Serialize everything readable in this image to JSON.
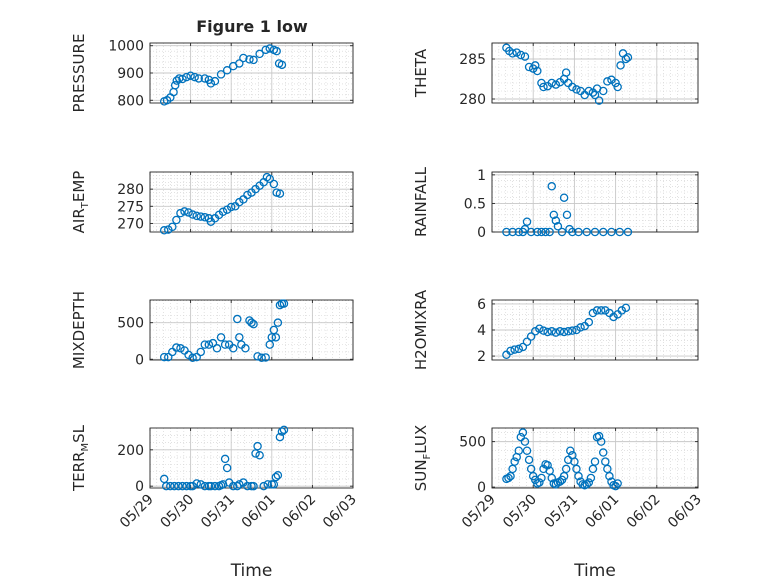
{
  "title": "Figure 1 low",
  "xtick_labels": [
    "05/29",
    "05/30",
    "05/31",
    "06/01",
    "06/02",
    "06/03"
  ],
  "xlabel": "Time",
  "marker_color": "#0072BD",
  "chart_data": [
    {
      "type": "scatter",
      "ylabel": "PRESSURE",
      "yticks": [
        800,
        900,
        1000
      ],
      "ylim": [
        790,
        1010
      ],
      "xlim": [
        0,
        5
      ],
      "grid": true,
      "points": [
        [
          0.35,
          796
        ],
        [
          0.42,
          800
        ],
        [
          0.5,
          810
        ],
        [
          0.58,
          830
        ],
        [
          0.62,
          855
        ],
        [
          0.66,
          872
        ],
        [
          0.72,
          880
        ],
        [
          0.8,
          878
        ],
        [
          0.9,
          885
        ],
        [
          1.0,
          890
        ],
        [
          1.1,
          885
        ],
        [
          1.2,
          880
        ],
        [
          1.35,
          880
        ],
        [
          1.45,
          875
        ],
        [
          1.5,
          862
        ],
        [
          1.6,
          870
        ],
        [
          1.75,
          895
        ],
        [
          1.9,
          910
        ],
        [
          2.05,
          925
        ],
        [
          2.2,
          935
        ],
        [
          2.3,
          955
        ],
        [
          2.45,
          950
        ],
        [
          2.55,
          948
        ],
        [
          2.7,
          970
        ],
        [
          2.85,
          985
        ],
        [
          2.95,
          990
        ],
        [
          3.05,
          985
        ],
        [
          3.12,
          980
        ],
        [
          3.18,
          935
        ],
        [
          3.25,
          930
        ]
      ]
    },
    {
      "type": "scatter",
      "ylabel": "THETA",
      "yticks": [
        280,
        285
      ],
      "ylim": [
        279.5,
        287
      ],
      "xlim": [
        0,
        5
      ],
      "grid": true,
      "points": [
        [
          0.35,
          286.4
        ],
        [
          0.42,
          286
        ],
        [
          0.5,
          285.7
        ],
        [
          0.6,
          285.8
        ],
        [
          0.7,
          285.5
        ],
        [
          0.8,
          285.3
        ],
        [
          0.9,
          284
        ],
        [
          1.0,
          283.8
        ],
        [
          1.05,
          284.2
        ],
        [
          1.1,
          283.5
        ],
        [
          1.2,
          282
        ],
        [
          1.25,
          281.5
        ],
        [
          1.35,
          281.6
        ],
        [
          1.45,
          282
        ],
        [
          1.55,
          281.8
        ],
        [
          1.65,
          282.1
        ],
        [
          1.75,
          282.5
        ],
        [
          1.8,
          283.3
        ],
        [
          1.85,
          282
        ],
        [
          1.95,
          281.5
        ],
        [
          2.05,
          281.2
        ],
        [
          2.15,
          281
        ],
        [
          2.25,
          280.5
        ],
        [
          2.35,
          281
        ],
        [
          2.45,
          280.8
        ],
        [
          2.5,
          280.5
        ],
        [
          2.55,
          281.3
        ],
        [
          2.6,
          279.8
        ],
        [
          2.7,
          281
        ],
        [
          2.8,
          282.2
        ],
        [
          2.9,
          282.4
        ],
        [
          3.0,
          282
        ],
        [
          3.05,
          281.5
        ],
        [
          3.12,
          284.2
        ],
        [
          3.18,
          285.7
        ],
        [
          3.25,
          285
        ],
        [
          3.3,
          285.2
        ]
      ]
    },
    {
      "type": "scatter",
      "ylabel": "AIR_TEMP",
      "yticks": [
        270,
        275,
        280
      ],
      "ylim": [
        267.5,
        285
      ],
      "xlim": [
        0,
        5
      ],
      "grid": true,
      "points": [
        [
          0.35,
          268
        ],
        [
          0.45,
          268.2
        ],
        [
          0.55,
          269
        ],
        [
          0.65,
          271
        ],
        [
          0.75,
          273
        ],
        [
          0.85,
          273.5
        ],
        [
          0.95,
          273.2
        ],
        [
          1.05,
          272.6
        ],
        [
          1.15,
          272.2
        ],
        [
          1.25,
          272
        ],
        [
          1.35,
          271.8
        ],
        [
          1.45,
          271.5
        ],
        [
          1.5,
          270.5
        ],
        [
          1.6,
          271.5
        ],
        [
          1.7,
          272.5
        ],
        [
          1.8,
          273.4
        ],
        [
          1.9,
          274
        ],
        [
          2.0,
          274.8
        ],
        [
          2.1,
          275
        ],
        [
          2.2,
          276.2
        ],
        [
          2.3,
          277
        ],
        [
          2.4,
          278.3
        ],
        [
          2.5,
          279
        ],
        [
          2.6,
          280
        ],
        [
          2.7,
          281
        ],
        [
          2.8,
          282
        ],
        [
          2.88,
          283.5
        ],
        [
          2.95,
          283
        ],
        [
          3.05,
          281.5
        ],
        [
          3.12,
          279
        ],
        [
          3.2,
          278.7
        ]
      ]
    },
    {
      "type": "scatter",
      "ylabel": "RAINFALL",
      "yticks": [
        0,
        0.5,
        1
      ],
      "ylim": [
        0,
        1.05
      ],
      "xlim": [
        0,
        5
      ],
      "grid": true,
      "points": [
        [
          0.35,
          0
        ],
        [
          0.5,
          0
        ],
        [
          0.65,
          0
        ],
        [
          0.75,
          0
        ],
        [
          0.8,
          0.05
        ],
        [
          0.85,
          0.18
        ],
        [
          0.95,
          0
        ],
        [
          1.1,
          0
        ],
        [
          1.2,
          0
        ],
        [
          1.3,
          0
        ],
        [
          1.4,
          0
        ],
        [
          1.45,
          0.8
        ],
        [
          1.5,
          0.3
        ],
        [
          1.55,
          0.2
        ],
        [
          1.6,
          0.1
        ],
        [
          1.7,
          0
        ],
        [
          1.75,
          0.6
        ],
        [
          1.82,
          0.3
        ],
        [
          1.88,
          0.05
        ],
        [
          1.95,
          0
        ],
        [
          2.1,
          0
        ],
        [
          2.3,
          0
        ],
        [
          2.5,
          0
        ],
        [
          2.7,
          0
        ],
        [
          2.9,
          0
        ],
        [
          3.1,
          0
        ],
        [
          3.3,
          0
        ]
      ]
    },
    {
      "type": "scatter",
      "ylabel": "MIXDEPTH",
      "yticks": [
        0,
        500
      ],
      "ylim": [
        -10,
        810
      ],
      "xlim": [
        0,
        5
      ],
      "grid": true,
      "points": [
        [
          0.35,
          30
        ],
        [
          0.45,
          30
        ],
        [
          0.55,
          100
        ],
        [
          0.65,
          160
        ],
        [
          0.75,
          150
        ],
        [
          0.85,
          120
        ],
        [
          0.95,
          60
        ],
        [
          1.05,
          20
        ],
        [
          1.15,
          30
        ],
        [
          1.25,
          100
        ],
        [
          1.35,
          200
        ],
        [
          1.45,
          200
        ],
        [
          1.55,
          220
        ],
        [
          1.65,
          150
        ],
        [
          1.75,
          300
        ],
        [
          1.85,
          200
        ],
        [
          1.95,
          200
        ],
        [
          2.05,
          150
        ],
        [
          2.15,
          550
        ],
        [
          2.2,
          300
        ],
        [
          2.25,
          200
        ],
        [
          2.35,
          150
        ],
        [
          2.45,
          530
        ],
        [
          2.5,
          500
        ],
        [
          2.55,
          480
        ],
        [
          2.65,
          40
        ],
        [
          2.75,
          20
        ],
        [
          2.85,
          25
        ],
        [
          2.95,
          200
        ],
        [
          3.0,
          300
        ],
        [
          3.05,
          400
        ],
        [
          3.1,
          300
        ],
        [
          3.15,
          500
        ],
        [
          3.2,
          740
        ],
        [
          3.25,
          760
        ],
        [
          3.3,
          760
        ]
      ]
    },
    {
      "type": "scatter",
      "ylabel": "H2OMIXRA",
      "yticks": [
        2,
        4,
        6
      ],
      "ylim": [
        1.7,
        6.3
      ],
      "xlim": [
        0,
        5
      ],
      "grid": true,
      "points": [
        [
          0.35,
          2.1
        ],
        [
          0.45,
          2.4
        ],
        [
          0.55,
          2.5
        ],
        [
          0.65,
          2.55
        ],
        [
          0.75,
          2.7
        ],
        [
          0.85,
          3.1
        ],
        [
          0.95,
          3.5
        ],
        [
          1.05,
          3.9
        ],
        [
          1.15,
          4.1
        ],
        [
          1.25,
          3.95
        ],
        [
          1.35,
          3.85
        ],
        [
          1.45,
          3.9
        ],
        [
          1.55,
          3.8
        ],
        [
          1.65,
          3.9
        ],
        [
          1.75,
          3.85
        ],
        [
          1.85,
          3.9
        ],
        [
          1.95,
          3.95
        ],
        [
          2.05,
          4.0
        ],
        [
          2.15,
          4.2
        ],
        [
          2.25,
          4.3
        ],
        [
          2.35,
          4.6
        ],
        [
          2.45,
          5.3
        ],
        [
          2.55,
          5.5
        ],
        [
          2.65,
          5.5
        ],
        [
          2.75,
          5.5
        ],
        [
          2.85,
          5.3
        ],
        [
          2.95,
          5.0
        ],
        [
          3.05,
          5.2
        ],
        [
          3.15,
          5.5
        ],
        [
          3.25,
          5.7
        ]
      ]
    },
    {
      "type": "scatter",
      "ylabel": "TERR_MSL",
      "yticks": [
        0,
        200
      ],
      "ylim": [
        -10,
        320
      ],
      "xlim": [
        0,
        5
      ],
      "grid": true,
      "points": [
        [
          0.35,
          40
        ],
        [
          0.4,
          0
        ],
        [
          0.5,
          0
        ],
        [
          0.6,
          0
        ],
        [
          0.7,
          0
        ],
        [
          0.8,
          0
        ],
        [
          0.9,
          0
        ],
        [
          1.0,
          0
        ],
        [
          1.05,
          0
        ],
        [
          1.15,
          15
        ],
        [
          1.25,
          10
        ],
        [
          1.35,
          0
        ],
        [
          1.45,
          0
        ],
        [
          1.5,
          0
        ],
        [
          1.6,
          0
        ],
        [
          1.7,
          0
        ],
        [
          1.75,
          5
        ],
        [
          1.8,
          10
        ],
        [
          1.85,
          150
        ],
        [
          1.9,
          100
        ],
        [
          1.95,
          20
        ],
        [
          2.05,
          0
        ],
        [
          2.15,
          0
        ],
        [
          2.2,
          10
        ],
        [
          2.3,
          20
        ],
        [
          2.4,
          0
        ],
        [
          2.5,
          0
        ],
        [
          2.55,
          0
        ],
        [
          2.6,
          180
        ],
        [
          2.65,
          220
        ],
        [
          2.7,
          170
        ],
        [
          2.8,
          0
        ],
        [
          2.9,
          10
        ],
        [
          3.0,
          10
        ],
        [
          3.05,
          10
        ],
        [
          3.1,
          50
        ],
        [
          3.15,
          60
        ],
        [
          3.2,
          270
        ],
        [
          3.25,
          300
        ],
        [
          3.3,
          310
        ]
      ]
    },
    {
      "type": "scatter",
      "ylabel": "SUN_FLUX",
      "yticks": [
        0,
        500
      ],
      "ylim": [
        -10,
        650
      ],
      "xlim": [
        0,
        5
      ],
      "grid": true,
      "points": [
        [
          0.35,
          90
        ],
        [
          0.4,
          100
        ],
        [
          0.45,
          120
        ],
        [
          0.5,
          200
        ],
        [
          0.55,
          280
        ],
        [
          0.6,
          330
        ],
        [
          0.65,
          400
        ],
        [
          0.7,
          550
        ],
        [
          0.75,
          600
        ],
        [
          0.8,
          500
        ],
        [
          0.85,
          400
        ],
        [
          0.9,
          300
        ],
        [
          0.95,
          200
        ],
        [
          1.0,
          120
        ],
        [
          1.05,
          80
        ],
        [
          1.1,
          40
        ],
        [
          1.15,
          50
        ],
        [
          1.2,
          100
        ],
        [
          1.25,
          200
        ],
        [
          1.3,
          250
        ],
        [
          1.35,
          240
        ],
        [
          1.4,
          180
        ],
        [
          1.45,
          100
        ],
        [
          1.5,
          40
        ],
        [
          1.55,
          30
        ],
        [
          1.6,
          50
        ],
        [
          1.65,
          60
        ],
        [
          1.7,
          80
        ],
        [
          1.75,
          120
        ],
        [
          1.8,
          200
        ],
        [
          1.85,
          300
        ],
        [
          1.9,
          400
        ],
        [
          1.95,
          350
        ],
        [
          2.0,
          280
        ],
        [
          2.05,
          200
        ],
        [
          2.1,
          120
        ],
        [
          2.15,
          60
        ],
        [
          2.2,
          30
        ],
        [
          2.25,
          20
        ],
        [
          2.3,
          30
        ],
        [
          2.35,
          50
        ],
        [
          2.4,
          100
        ],
        [
          2.45,
          200
        ],
        [
          2.5,
          280
        ],
        [
          2.55,
          550
        ],
        [
          2.6,
          560
        ],
        [
          2.65,
          500
        ],
        [
          2.7,
          380
        ],
        [
          2.75,
          280
        ],
        [
          2.8,
          200
        ],
        [
          2.85,
          120
        ],
        [
          2.9,
          60
        ],
        [
          2.95,
          20
        ],
        [
          3.0,
          10
        ],
        [
          3.05,
          40
        ]
      ]
    }
  ]
}
